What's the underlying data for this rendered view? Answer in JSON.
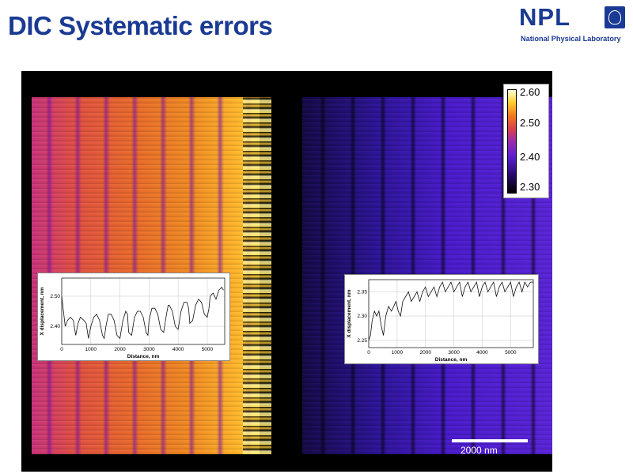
{
  "slide": {
    "title": "DIC Systematic errors"
  },
  "logo": {
    "text": "NPL",
    "subtitle": "National Physical Laboratory",
    "crest_icon": "npl-crest-icon"
  },
  "colorbar": {
    "ticks": [
      "2.60",
      "2.50",
      "2.40",
      "2.30"
    ],
    "colors": [
      "#ffffd8",
      "#ffcf30",
      "#d8404a",
      "#5a1fd0",
      "#000000"
    ]
  },
  "scalebar": {
    "label": "2000 nm"
  },
  "chart_data": [
    {
      "type": "line",
      "xlabel": "Distance, nm",
      "ylabel": "X displacement, nm",
      "xticks": [
        "0",
        "1000",
        "2000",
        "3000",
        "4000",
        "5000"
      ],
      "yticks": [
        "2.40",
        "2.50"
      ],
      "xlim": [
        0,
        5600
      ],
      "ylim": [
        2.34,
        2.56
      ],
      "grid": true,
      "x": [
        0,
        60,
        120,
        200,
        300,
        400,
        480,
        560,
        640,
        760,
        840,
        920,
        1000,
        1100,
        1200,
        1300,
        1400,
        1460,
        1520,
        1600,
        1700,
        1800,
        1900,
        2000,
        2100,
        2200,
        2260,
        2300,
        2400,
        2500,
        2600,
        2700,
        2800,
        2900,
        2960,
        3000,
        3100,
        3200,
        3300,
        3400,
        3500,
        3600,
        3660,
        3700,
        3800,
        3900,
        4000,
        4100,
        4200,
        4300,
        4360,
        4400,
        4500,
        4600,
        4700,
        4800,
        4900,
        5000,
        5060,
        5100,
        5200,
        5300,
        5400,
        5500,
        5560
      ],
      "y": [
        2.5,
        2.45,
        2.4,
        2.42,
        2.43,
        2.42,
        2.37,
        2.41,
        2.43,
        2.42,
        2.41,
        2.36,
        2.4,
        2.43,
        2.44,
        2.42,
        2.37,
        2.36,
        2.4,
        2.44,
        2.44,
        2.42,
        2.37,
        2.36,
        2.42,
        2.45,
        2.44,
        2.38,
        2.37,
        2.43,
        2.45,
        2.45,
        2.43,
        2.38,
        2.37,
        2.42,
        2.46,
        2.46,
        2.44,
        2.39,
        2.38,
        2.44,
        2.47,
        2.47,
        2.45,
        2.4,
        2.39,
        2.45,
        2.48,
        2.48,
        2.46,
        2.41,
        2.42,
        2.47,
        2.49,
        2.48,
        2.44,
        2.43,
        2.46,
        2.5,
        2.51,
        2.49,
        2.52,
        2.53,
        2.52
      ]
    },
    {
      "type": "line",
      "xlabel": "Distance, nm",
      "ylabel": "X displacement, nm",
      "xticks": [
        "0",
        "1000",
        "2000",
        "3000",
        "4000",
        "5000"
      ],
      "yticks": [
        "2.25",
        "2.30",
        "2.35"
      ],
      "xlim": [
        0,
        5800
      ],
      "ylim": [
        2.235,
        2.375
      ],
      "grid": true,
      "x": [
        0,
        60,
        120,
        200,
        280,
        360,
        440,
        520,
        600,
        700,
        800,
        880,
        960,
        1040,
        1120,
        1200,
        1300,
        1400,
        1500,
        1600,
        1700,
        1800,
        1900,
        2000,
        2100,
        2200,
        2300,
        2400,
        2500,
        2600,
        2700,
        2800,
        2900,
        3000,
        3100,
        3200,
        3300,
        3400,
        3500,
        3600,
        3700,
        3800,
        3900,
        4000,
        4100,
        4200,
        4300,
        4400,
        4500,
        4600,
        4700,
        4800,
        4900,
        5000,
        5100,
        5200,
        5300,
        5400,
        5500,
        5600,
        5700,
        5800
      ],
      "y": [
        2.25,
        2.26,
        2.29,
        2.31,
        2.3,
        2.31,
        2.28,
        2.26,
        2.3,
        2.32,
        2.31,
        2.32,
        2.33,
        2.31,
        2.3,
        2.33,
        2.34,
        2.35,
        2.33,
        2.34,
        2.35,
        2.33,
        2.35,
        2.36,
        2.34,
        2.35,
        2.36,
        2.34,
        2.36,
        2.37,
        2.35,
        2.36,
        2.37,
        2.35,
        2.36,
        2.37,
        2.34,
        2.36,
        2.37,
        2.35,
        2.36,
        2.37,
        2.34,
        2.36,
        2.37,
        2.35,
        2.36,
        2.37,
        2.34,
        2.36,
        2.37,
        2.35,
        2.36,
        2.37,
        2.34,
        2.36,
        2.37,
        2.35,
        2.37,
        2.36,
        2.37,
        2.37
      ]
    }
  ]
}
